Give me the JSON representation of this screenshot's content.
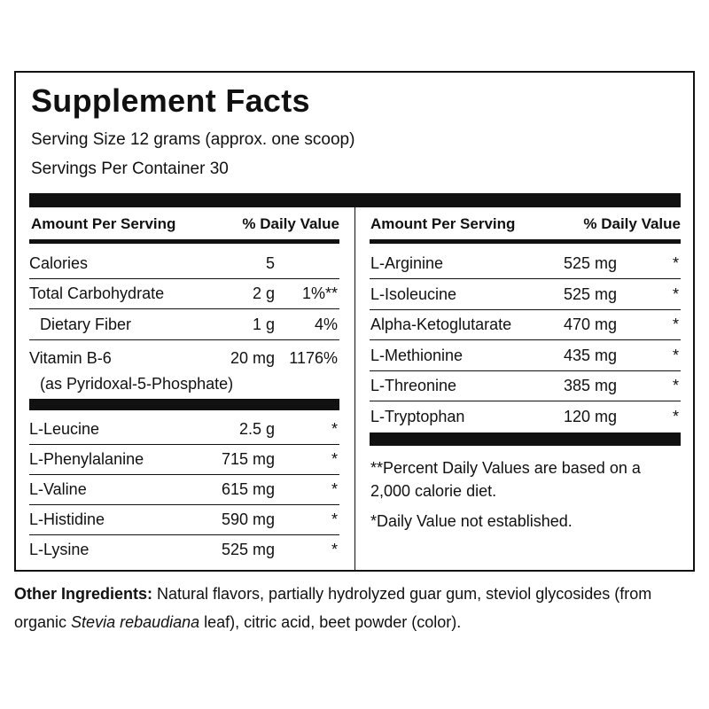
{
  "header": {
    "title": "Supplement Facts",
    "serving_size": "Serving Size 12 grams (approx. one scoop)",
    "servings_per_container": "Servings Per Container 30"
  },
  "left": {
    "column_headers": [
      "Amount Per Serving",
      "% Daily Value"
    ],
    "rows": [
      {
        "name": "Calories",
        "amount": "5"
      },
      {
        "name": "Total Carbohydrate",
        "amount": "2 g",
        "dv": "1%**"
      },
      {
        "name": "Dietary Fiber",
        "amount": "1 g",
        "dv": "4%"
      },
      {
        "name": "Vitamin B-6",
        "amount": "20 mg",
        "dv": "1176%",
        "note": "(as Pyridoxal-5-Phosphate)"
      }
    ],
    "amino_rows": [
      {
        "name": "L-Leucine",
        "amount": "2.5 g",
        "dv": "*"
      },
      {
        "name": "L-Phenylalanine",
        "amount": "715 mg",
        "dv": "*"
      },
      {
        "name": "L-Valine",
        "amount": "615 mg",
        "dv": "*"
      },
      {
        "name": "L-Histidine",
        "amount": "590 mg",
        "dv": "*"
      },
      {
        "name": "L-Lysine",
        "amount": "525 mg",
        "dv": "*"
      }
    ]
  },
  "right": {
    "column_headers": [
      "Amount Per Serving",
      "% Daily Value"
    ],
    "rows": [
      {
        "name": "L-Arginine",
        "amount": "525 mg",
        "dv": "*"
      },
      {
        "name": "L-Isoleucine",
        "amount": "525 mg",
        "dv": "*"
      },
      {
        "name": "Alpha-Ketoglutarate",
        "amount": "470 mg",
        "dv": "*"
      },
      {
        "name": "L-Methionine",
        "amount": "435 mg",
        "dv": "*"
      },
      {
        "name": "L-Threonine",
        "amount": "385 mg",
        "dv": "*"
      },
      {
        "name": "L-Tryptophan",
        "amount": "120 mg",
        "dv": "*"
      }
    ],
    "footnotes": [
      "**Percent Daily Values are based on a 2,000 calorie diet.",
      "*Daily Value not established."
    ]
  },
  "other_ingredients": {
    "label": "Other Ingredients:",
    "text_before": " Natural flavors, partially hydrolyzed guar gum, steviol glycosides (from organic ",
    "italic": "Stevia rebaudiana",
    "text_after": " leaf), citric acid, beet powder (color)."
  }
}
